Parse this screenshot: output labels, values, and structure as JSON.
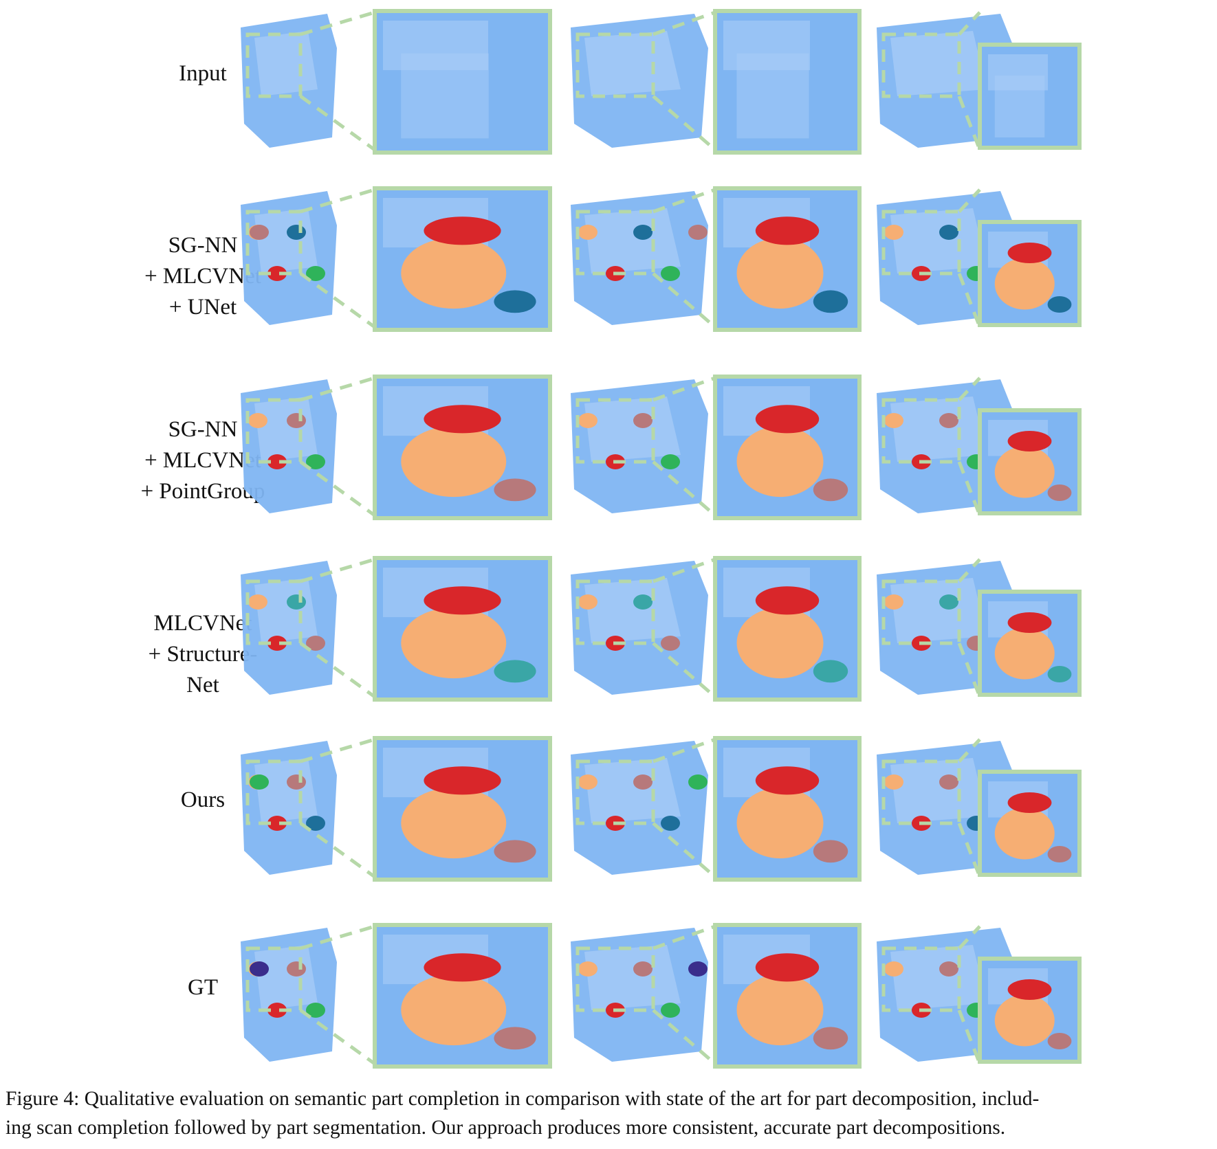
{
  "figure": {
    "rows": [
      {
        "id": "input",
        "label_lines": [
          "Input"
        ]
      },
      {
        "id": "sgnn-mlcvnet-unet",
        "label_lines": [
          "SG-NN",
          "+ MLCVNet",
          "+ UNet"
        ]
      },
      {
        "id": "sgnn-mlcvnet-pointgroup",
        "label_lines": [
          "SG-NN",
          "+ MLCVNet",
          "+ PointGroup"
        ]
      },
      {
        "id": "mlcvnet-structurenet",
        "label_lines": [
          "MLCVNet",
          "+ Structure-",
          "Net"
        ]
      },
      {
        "id": "ours",
        "label_lines": [
          "Ours"
        ]
      },
      {
        "id": "gt",
        "label_lines": [
          "GT"
        ]
      }
    ],
    "scenes": [
      "scene-1",
      "scene-2",
      "scene-3"
    ],
    "colors": {
      "scan": "#7fb5f2",
      "scan_light": "#a9cdf7",
      "inset_border": "#b6d8a8",
      "dash": "#b6d8a8",
      "part_red": "#d9262a",
      "part_orange": "#f6ae73",
      "part_mauve": "#b7797b",
      "part_blue": "#1e6f9a",
      "part_green": "#2fb35a",
      "part_purple": "#3a2d8c",
      "part_cyan": "#3aa6a6"
    }
  },
  "caption": {
    "line1": "Figure 4: Qualitative evaluation on semantic part completion in comparison with state of the art for part decomposition, includ-",
    "line2": "ing scan completion followed by part segmentation. Our approach produces more consistent, accurate part decompositions."
  }
}
